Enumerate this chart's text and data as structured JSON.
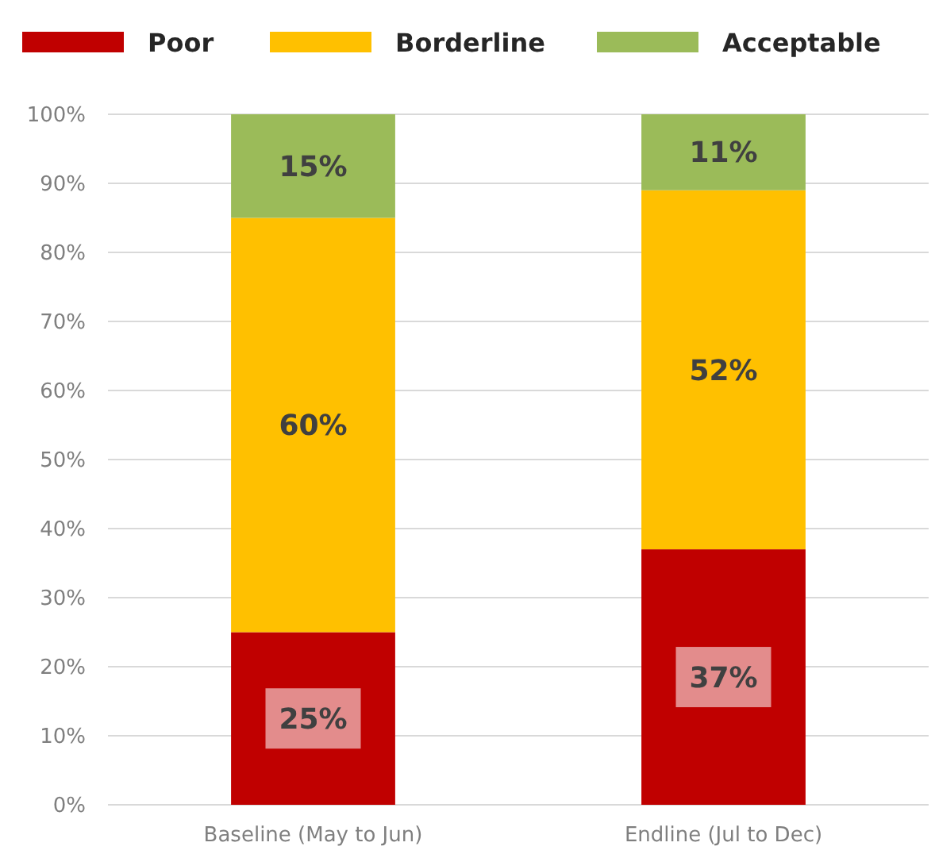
{
  "chart_data": {
    "type": "bar",
    "stacked": true,
    "categories": [
      "Baseline (May to Jun)",
      "Endline (Jul to Dec)"
    ],
    "series": [
      {
        "name": "Poor",
        "color": "#c00000",
        "values": [
          25,
          37
        ],
        "value_labels": [
          "25%",
          "37%"
        ]
      },
      {
        "name": "Borderline",
        "color": "#ffc000",
        "values": [
          60,
          52
        ],
        "value_labels": [
          "60%",
          "52%"
        ]
      },
      {
        "name": "Acceptable",
        "color": "#9bbb59",
        "values": [
          15,
          11
        ],
        "value_labels": [
          "15%",
          "11%"
        ]
      }
    ],
    "ylim": [
      0,
      100
    ],
    "yticks": [
      {
        "value": 0,
        "label": "0%"
      },
      {
        "value": 10,
        "label": "10%"
      },
      {
        "value": 20,
        "label": "20%"
      },
      {
        "value": 30,
        "label": "30%"
      },
      {
        "value": 40,
        "label": "40%"
      },
      {
        "value": 50,
        "label": "50%"
      },
      {
        "value": 60,
        "label": "60%"
      },
      {
        "value": 70,
        "label": "70%"
      },
      {
        "value": 80,
        "label": "80%"
      },
      {
        "value": 90,
        "label": "90%"
      },
      {
        "value": 100,
        "label": "100%"
      }
    ],
    "grid": "y",
    "legend": "top"
  }
}
